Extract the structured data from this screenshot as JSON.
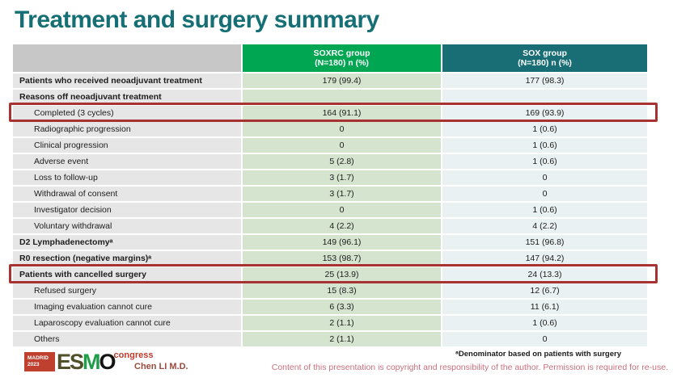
{
  "title": "Treatment and surgery summary",
  "table": {
    "header": {
      "blank": "",
      "soxrc_line1": "SOXRC group",
      "soxrc_line2": "(N=180)  n (%)",
      "sox_line1": "SOX group",
      "sox_line2": "(N=180)  n (%)"
    },
    "rows": [
      {
        "label": "Patients who received neoadjuvant treatment",
        "soxrc": "179 (99.4)",
        "sox": "177 (98.3)",
        "bold": true
      },
      {
        "label": "Reasons off neoadjuvant treatment",
        "soxrc": "",
        "sox": "",
        "bold": true
      },
      {
        "label": "Completed (3 cycles)",
        "soxrc": "164 (91.1)",
        "sox": "169 (93.9)",
        "indent": true,
        "highlight": true
      },
      {
        "label": "Radiographic progression",
        "soxrc": "0",
        "sox": "1 (0.6)",
        "indent": true
      },
      {
        "label": "Clinical progression",
        "soxrc": "0",
        "sox": "1 (0.6)",
        "indent": true
      },
      {
        "label": "Adverse event",
        "soxrc": "5 (2.8)",
        "sox": "1 (0.6)",
        "indent": true
      },
      {
        "label": "Loss to follow-up",
        "soxrc": "3 (1.7)",
        "sox": "0",
        "indent": true
      },
      {
        "label": "Withdrawal of consent",
        "soxrc": "3 (1.7)",
        "sox": "0",
        "indent": true
      },
      {
        "label": "Investigator decision",
        "soxrc": "0",
        "sox": "1 (0.6)",
        "indent": true
      },
      {
        "label": "Voluntary withdrawal",
        "soxrc": "4 (2.2)",
        "sox": "4 (2.2)",
        "indent": true
      },
      {
        "label": "D2 Lymphadenectomyᵃ",
        "soxrc": "149 (96.1)",
        "sox": "151 (96.8)",
        "bold": true
      },
      {
        "label": "R0 resection (negative margins)ᵃ",
        "soxrc": "153 (98.7)",
        "sox": "147 (94.2)",
        "bold": true
      },
      {
        "label": "Patients with cancelled surgery",
        "soxrc": "25 (13.9)",
        "sox": "24 (13.3)",
        "bold": true,
        "highlight": true
      },
      {
        "label": "Refused surgery",
        "soxrc": "15 (8.3)",
        "sox": "12 (6.7)",
        "indent": true
      },
      {
        "label": "Imaging evaluation cannot cure",
        "soxrc": "6 (3.3)",
        "sox": "11 (6.1)",
        "indent": true
      },
      {
        "label": "Laparoscopy evaluation cannot cure",
        "soxrc": "2 (1.1)",
        "sox": "1 (0.6)",
        "indent": true
      },
      {
        "label": "Others",
        "soxrc": "2 (1.1)",
        "sox": "0",
        "indent": true
      }
    ]
  },
  "footnote": "ᵃDenominator based on patients with surgery",
  "footer": {
    "author": "Chen LI M.D.",
    "copyright": "Content of this presentation is copyright and responsibility of the author. Permission is required for re-use.",
    "logo": {
      "location": "MADRID",
      "year": "2023",
      "esmo_e": "E",
      "esmo_s": "S",
      "esmo_m": "M",
      "esmo_o": "O",
      "congress": "congress"
    }
  },
  "colors": {
    "title": "#156f74",
    "header_green": "#00a651",
    "header_teal": "#186e74",
    "header_gray": "#c7c7c7",
    "label_cell": "#e7e6e6",
    "soxrc_cell": "#d5e4cf",
    "sox_cell": "#e9f1f2",
    "highlight_border": "#a83232"
  }
}
